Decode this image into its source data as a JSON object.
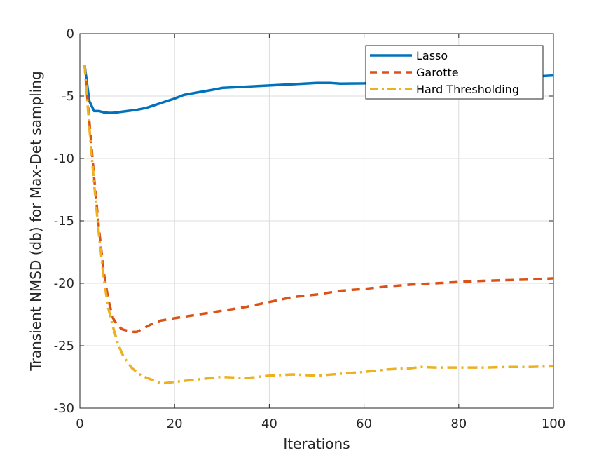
{
  "chart_data": {
    "type": "line",
    "title": "",
    "xlabel": "Iterations",
    "ylabel": "Transient NMSD (db) for Max-Det sampling",
    "xlim": [
      0,
      100
    ],
    "ylim": [
      -30,
      0
    ],
    "xticks": [
      0,
      20,
      40,
      60,
      80,
      100
    ],
    "yticks": [
      0,
      -5,
      -10,
      -15,
      -20,
      -25,
      -30
    ],
    "grid": true,
    "legend_position": "top-right",
    "series": [
      {
        "name": "Lasso",
        "color": "#0072BD",
        "style": "solid",
        "x": [
          1,
          2,
          3,
          4,
          5,
          6,
          7,
          8,
          10,
          12,
          14,
          16,
          18,
          20,
          22,
          25,
          28,
          30,
          35,
          40,
          45,
          50,
          53,
          55,
          60,
          65,
          70,
          75,
          80,
          85,
          90,
          95,
          100
        ],
        "y": [
          -2.5,
          -5.4,
          -6.2,
          -6.2,
          -6.3,
          -6.35,
          -6.35,
          -6.3,
          -6.2,
          -6.1,
          -5.95,
          -5.7,
          -5.45,
          -5.2,
          -4.9,
          -4.7,
          -4.5,
          -4.35,
          -4.25,
          -4.15,
          -4.05,
          -3.95,
          -3.95,
          -4.0,
          -3.98,
          -3.9,
          -3.85,
          -3.8,
          -3.75,
          -3.65,
          -3.55,
          -3.45,
          -3.35
        ]
      },
      {
        "name": "Garotte",
        "color": "#D95319",
        "style": "dashed",
        "x": [
          1,
          2,
          3,
          4,
          5,
          6,
          7,
          8,
          9,
          10,
          11,
          12,
          13,
          15,
          17,
          20,
          25,
          30,
          35,
          40,
          45,
          50,
          55,
          60,
          65,
          70,
          75,
          80,
          85,
          90,
          95,
          100
        ],
        "y": [
          -2.5,
          -7.0,
          -11.5,
          -15.5,
          -19.0,
          -21.3,
          -22.8,
          -23.4,
          -23.7,
          -23.8,
          -23.9,
          -23.9,
          -23.7,
          -23.3,
          -23.0,
          -22.8,
          -22.5,
          -22.2,
          -21.9,
          -21.5,
          -21.1,
          -20.9,
          -20.6,
          -20.45,
          -20.25,
          -20.1,
          -20.0,
          -19.9,
          -19.8,
          -19.75,
          -19.7,
          -19.6
        ]
      },
      {
        "name": "Hard Thresholding",
        "color": "#EDB120",
        "style": "dashdot",
        "x": [
          1,
          2,
          3,
          4,
          5,
          6,
          7,
          8,
          9,
          10,
          11,
          12,
          13,
          15,
          17,
          18,
          20,
          25,
          30,
          35,
          40,
          45,
          50,
          55,
          60,
          65,
          70,
          72,
          75,
          80,
          85,
          90,
          95,
          100
        ],
        "y": [
          -2.5,
          -7.5,
          -12.0,
          -16.0,
          -19.5,
          -22.0,
          -23.5,
          -24.8,
          -25.7,
          -26.3,
          -26.8,
          -27.1,
          -27.4,
          -27.7,
          -28.0,
          -28.0,
          -27.9,
          -27.7,
          -27.5,
          -27.6,
          -27.4,
          -27.3,
          -27.4,
          -27.25,
          -27.1,
          -26.9,
          -26.8,
          -26.7,
          -26.75,
          -26.75,
          -26.75,
          -26.7,
          -26.7,
          -26.65
        ]
      }
    ]
  }
}
